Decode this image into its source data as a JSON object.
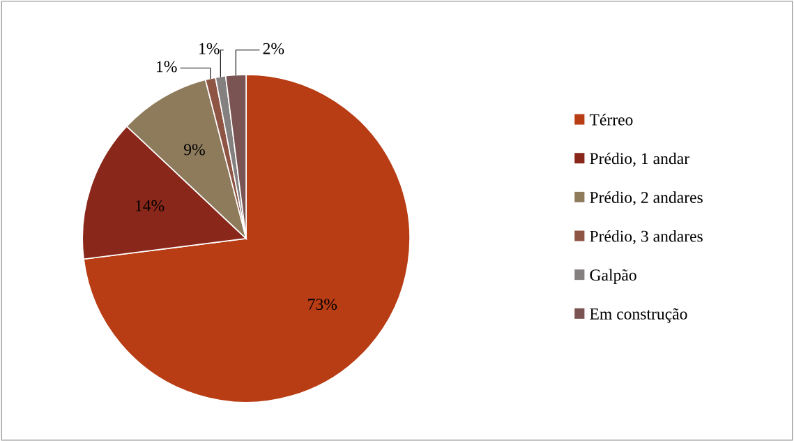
{
  "chart_data": {
    "type": "pie",
    "categories": [
      "Térreo",
      "Prédio, 1 andar",
      "Prédio, 2 andares",
      "Prédio, 3 andares",
      "Galpão",
      "Em construção"
    ],
    "values": [
      73,
      14,
      9,
      1,
      1,
      2
    ],
    "colors": [
      "#b83c14",
      "#8a271b",
      "#8e7b5c",
      "#8e5444",
      "#858080",
      "#7a5452"
    ],
    "value_labels": [
      "73%",
      "14%",
      "9%",
      "1%",
      "1%",
      "2%"
    ],
    "legend": "right"
  }
}
